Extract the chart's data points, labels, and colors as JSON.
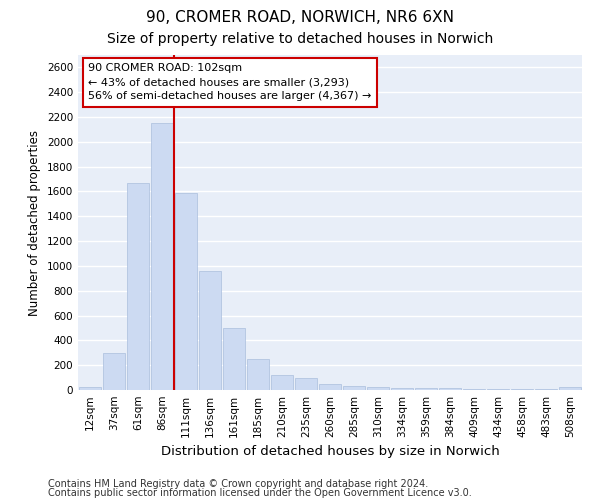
{
  "title1": "90, CROMER ROAD, NORWICH, NR6 6XN",
  "title2": "Size of property relative to detached houses in Norwich",
  "xlabel": "Distribution of detached houses by size in Norwich",
  "ylabel": "Number of detached properties",
  "categories": [
    "12sqm",
    "37sqm",
    "61sqm",
    "86sqm",
    "111sqm",
    "136sqm",
    "161sqm",
    "185sqm",
    "210sqm",
    "235sqm",
    "260sqm",
    "285sqm",
    "310sqm",
    "334sqm",
    "359sqm",
    "384sqm",
    "409sqm",
    "434sqm",
    "458sqm",
    "483sqm",
    "508sqm"
  ],
  "values": [
    25,
    300,
    1670,
    2150,
    1590,
    960,
    500,
    250,
    120,
    100,
    50,
    30,
    25,
    20,
    15,
    15,
    10,
    10,
    5,
    5,
    25
  ],
  "bar_color": "#ccdaf2",
  "bar_edge_color": "#aabedd",
  "vline_pos": 3.5,
  "vline_color": "#cc0000",
  "annotation_text": "90 CROMER ROAD: 102sqm\n← 43% of detached houses are smaller (3,293)\n56% of semi-detached houses are larger (4,367) →",
  "annotation_box_color": "#ffffff",
  "annotation_box_edge": "#cc0000",
  "ylim": [
    0,
    2700
  ],
  "yticks": [
    0,
    200,
    400,
    600,
    800,
    1000,
    1200,
    1400,
    1600,
    1800,
    2000,
    2200,
    2400,
    2600
  ],
  "footer1": "Contains HM Land Registry data © Crown copyright and database right 2024.",
  "footer2": "Contains public sector information licensed under the Open Government Licence v3.0.",
  "bg_color": "#ffffff",
  "plot_bg_color": "#e8eef8",
  "grid_color": "#ffffff",
  "title1_fontsize": 11,
  "title2_fontsize": 10,
  "xlabel_fontsize": 9.5,
  "ylabel_fontsize": 8.5,
  "tick_fontsize": 7.5,
  "annot_fontsize": 8,
  "footer_fontsize": 7
}
